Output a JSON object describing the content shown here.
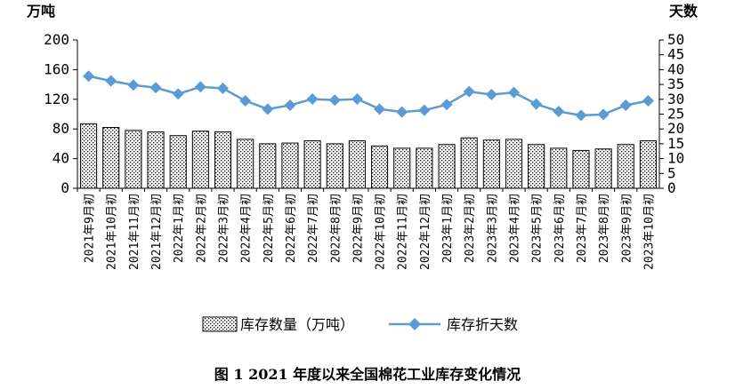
{
  "caption": "图 1   2021 年度以来全国棉花工业库存变化情况",
  "chart_data": {
    "type": "bar+line",
    "left_unit": "万吨",
    "right_unit": "天数",
    "left_axis": {
      "min": 0,
      "max": 200,
      "ticks": [
        0,
        40,
        80,
        120,
        160,
        200
      ]
    },
    "right_axis": {
      "min": 0,
      "max": 50,
      "ticks": [
        0,
        5,
        10,
        15,
        20,
        25,
        30,
        35,
        40,
        45,
        50
      ]
    },
    "grid": false,
    "legend_position": "bottom",
    "categories": [
      "2021年9月初",
      "2021年10月初",
      "2021年11月初",
      "2021年12月初",
      "2022年1月初",
      "2022年2月初",
      "2022年3月初",
      "2022年4月初",
      "2022年5月初",
      "2022年6月初",
      "2022年7月初",
      "2022年8月初",
      "2022年9月初",
      "2022年10月初",
      "2022年11月初",
      "2022年12月初",
      "2023年1月初",
      "2023年2月初",
      "2023年3月初",
      "2023年4月初",
      "2023年5月初",
      "2023年6月初",
      "2023年7月初",
      "2023年8月初",
      "2023年9月初",
      "2023年10月初"
    ],
    "series": [
      {
        "name": "库存数量（万吨）",
        "type": "bar",
        "axis": "left",
        "color": "#000000",
        "values": [
          87,
          82,
          78,
          76,
          71,
          77,
          76,
          66,
          60,
          61,
          64,
          60,
          64,
          57,
          54,
          54,
          59,
          68,
          65,
          66,
          59,
          54,
          51,
          53,
          59,
          64
        ]
      },
      {
        "name": "库存折天数",
        "type": "line",
        "axis": "right",
        "color": "#5B9BD5",
        "values": [
          37.8,
          36.2,
          34.8,
          33.9,
          31.8,
          34.2,
          33.7,
          29.5,
          26.7,
          28.0,
          30.1,
          29.7,
          30.1,
          26.7,
          25.7,
          26.3,
          28.2,
          32.6,
          31.6,
          32.3,
          28.4,
          25.9,
          24.6,
          24.9,
          28.0,
          29.5
        ]
      }
    ]
  }
}
